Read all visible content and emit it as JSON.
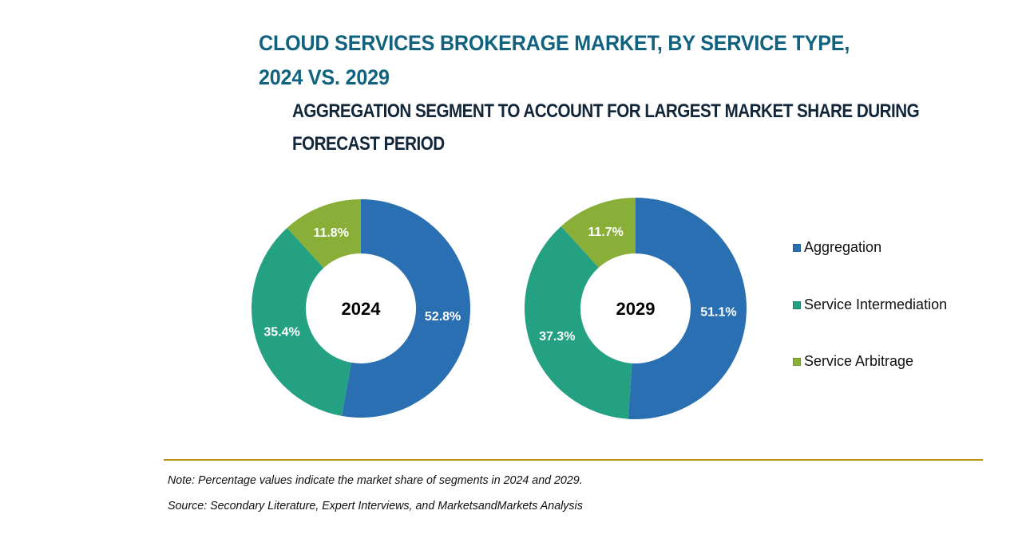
{
  "chart_data": [
    {
      "type": "pie",
      "variant": "donut",
      "center_label": "2024",
      "categories": [
        "Aggregation",
        "Service Intermediation",
        "Service Arbitrage"
      ],
      "values": [
        52.8,
        35.4,
        11.8
      ],
      "value_labels": [
        "52.8%",
        "35.4%",
        "11.8%"
      ],
      "unit": "%"
    },
    {
      "type": "pie",
      "variant": "donut",
      "center_label": "2029",
      "categories": [
        "Aggregation",
        "Service Intermediation",
        "Service Arbitrage"
      ],
      "values": [
        51.1,
        37.3,
        11.7
      ],
      "value_labels": [
        "51.1%",
        "37.3%",
        "11.7%"
      ],
      "unit": "%"
    }
  ],
  "title": {
    "line1": "CLOUD SERVICES BROKERAGE MARKET, BY SERVICE TYPE,",
    "line2": "2024 VS. 2029"
  },
  "subtitle": {
    "line1": "AGGREGATION SEGMENT TO ACCOUNT FOR LARGEST MARKET SHARE DURING",
    "line2": "FORECAST PERIOD"
  },
  "legend": {
    "position": "right",
    "items": [
      {
        "label": "Aggregation",
        "color": "#2a6fb1"
      },
      {
        "label": "Service Intermediation",
        "color": "#24a083"
      },
      {
        "label": "Service Arbitrage",
        "color": "#8aaf38"
      }
    ]
  },
  "colors": {
    "aggregation": "#2a6fb1",
    "intermediation": "#24a083",
    "arbitrage": "#8aaf38",
    "title": "#10627f",
    "rule": "#b8920c"
  },
  "footer": {
    "note": "Note: Percentage values indicate the market share of segments in 2024 and 2029.",
    "source": "Source: Secondary Literature, Expert Interviews, and MarketsandMarkets Analysis"
  }
}
